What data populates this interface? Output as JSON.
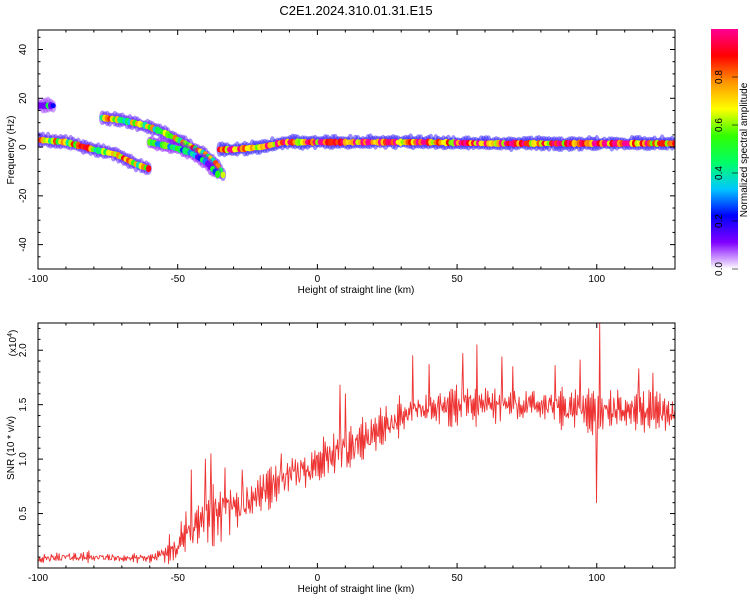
{
  "title": "C2E1.2024.310.01.31.E15",
  "chart_data": [
    {
      "type": "heatmap",
      "xlabel": "Height of straight line (km)",
      "ylabel": "Frequency (Hz)",
      "xlim": [
        -100,
        128
      ],
      "ylim": [
        -50,
        48
      ],
      "xticks": [
        -100,
        -50,
        0,
        50,
        100
      ],
      "yticks": [
        -40,
        -20,
        0,
        20,
        40
      ],
      "colorbar": {
        "label": "Normalized spectral amplitude",
        "range": [
          0,
          1
        ],
        "ticks": [
          "0.0",
          "0.2",
          "0.4",
          "0.6",
          "0.8"
        ],
        "colors": [
          "#ffffff",
          "#8000ff",
          "#0000ff",
          "#00c8ff",
          "#00ff64",
          "#32ff00",
          "#ffff00",
          "#ff9600",
          "#ff0000",
          "#ff0096"
        ]
      },
      "traces": [
        {
          "points": [
            [
              -100,
              3
            ],
            [
              -90,
              2
            ],
            [
              -80,
              -1
            ],
            [
              -72,
              -3
            ],
            [
              -65,
              -7
            ],
            [
              -60,
              -9
            ]
          ],
          "amplitude": 0.65
        },
        {
          "points": [
            [
              -100,
              17
            ],
            [
              -94,
              17
            ]
          ],
          "amplitude": 0.25
        },
        {
          "points": [
            [
              -77,
              12
            ],
            [
              -70,
              11
            ],
            [
              -62,
              9
            ],
            [
              -55,
              6
            ],
            [
              -50,
              3
            ],
            [
              -45,
              0
            ],
            [
              -40,
              -3
            ],
            [
              -36,
              -7
            ],
            [
              -33,
              -13
            ]
          ],
          "amplitude": 0.6
        },
        {
          "points": [
            [
              -60,
              2
            ],
            [
              -52,
              0
            ],
            [
              -46,
              -2
            ],
            [
              -40,
              -6
            ],
            [
              -35,
              -12
            ]
          ],
          "amplitude": 0.35
        },
        {
          "points": [
            [
              -35,
              -1
            ],
            [
              -30,
              -1
            ],
            [
              -20,
              0
            ],
            [
              -12,
              2
            ],
            [
              0,
              2
            ],
            [
              20,
              2
            ],
            [
              40,
              2
            ],
            [
              60,
              1.5
            ],
            [
              80,
              1.5
            ],
            [
              100,
              1.5
            ],
            [
              128,
              1.5
            ]
          ],
          "amplitude": 0.85
        }
      ]
    },
    {
      "type": "line",
      "xlabel": "Height of straight line (km)",
      "ylabel": "SNR (10 * v/v)",
      "yscale_label": "(x10",
      "yscale_exp": "4",
      "yscale_suffix": ")",
      "xlim": [
        -100,
        128
      ],
      "ylim": [
        0,
        22500
      ],
      "xticks": [
        -100,
        -50,
        0,
        50,
        100
      ],
      "yticks": [
        5000,
        10000,
        15000,
        20000
      ],
      "ytick_labels": [
        "0.5",
        "1.0",
        "1.5",
        "2.0"
      ],
      "series": [
        {
          "color": "#ee3333",
          "envelope": {
            "x": [
              -100,
              -90,
              -80,
              -70,
              -60,
              -55,
              -50,
              -45,
              -40,
              -35,
              -30,
              -25,
              -20,
              -15,
              -10,
              -5,
              0,
              5,
              10,
              15,
              20,
              25,
              30,
              35,
              40,
              50,
              60,
              70,
              80,
              90,
              95,
              100,
              105,
              110,
              120,
              128
            ],
            "base": [
              800,
              1000,
              1000,
              900,
              900,
              1200,
              2200,
              3500,
              4500,
              5000,
              5300,
              6000,
              7000,
              7800,
              8500,
              9000,
              9600,
              10200,
              10800,
              11500,
              12300,
              13200,
              13800,
              14400,
              14600,
              14900,
              15000,
              15000,
              14900,
              14600,
              14600,
              14300,
              14400,
              14500,
              14400,
              14200
            ],
            "amp": [
              500,
              700,
              600,
              500,
              600,
              1000,
              2500,
              3500,
              4000,
              3800,
              3600,
              2500,
              2300,
              2400,
              2400,
              2600,
              2800,
              2800,
              3000,
              2600,
              2300,
              2200,
              2100,
              2200,
              2300,
              2400,
              2400,
              2400,
              2300,
              2200,
              2200,
              2400,
              2200,
              2200,
              2100,
              2100
            ]
          },
          "spikes": [
            [
              -45,
              9000
            ],
            [
              -40,
              10000
            ],
            [
              -38,
              10500
            ],
            [
              -33,
              9200
            ],
            [
              -30,
              6500
            ],
            [
              -27,
              9000
            ],
            [
              -13,
              10500
            ],
            [
              8,
              16800
            ],
            [
              10,
              16000
            ],
            [
              34,
              19500
            ],
            [
              40,
              18700
            ],
            [
              52,
              19700
            ],
            [
              57,
              20500
            ],
            [
              66,
              19400
            ],
            [
              70,
              18500
            ],
            [
              85,
              18600
            ],
            [
              94,
              19100
            ],
            [
              101,
              22500
            ],
            [
              100,
              6000
            ],
            [
              115,
              18300
            ],
            [
              120,
              17900
            ]
          ]
        }
      ]
    }
  ]
}
